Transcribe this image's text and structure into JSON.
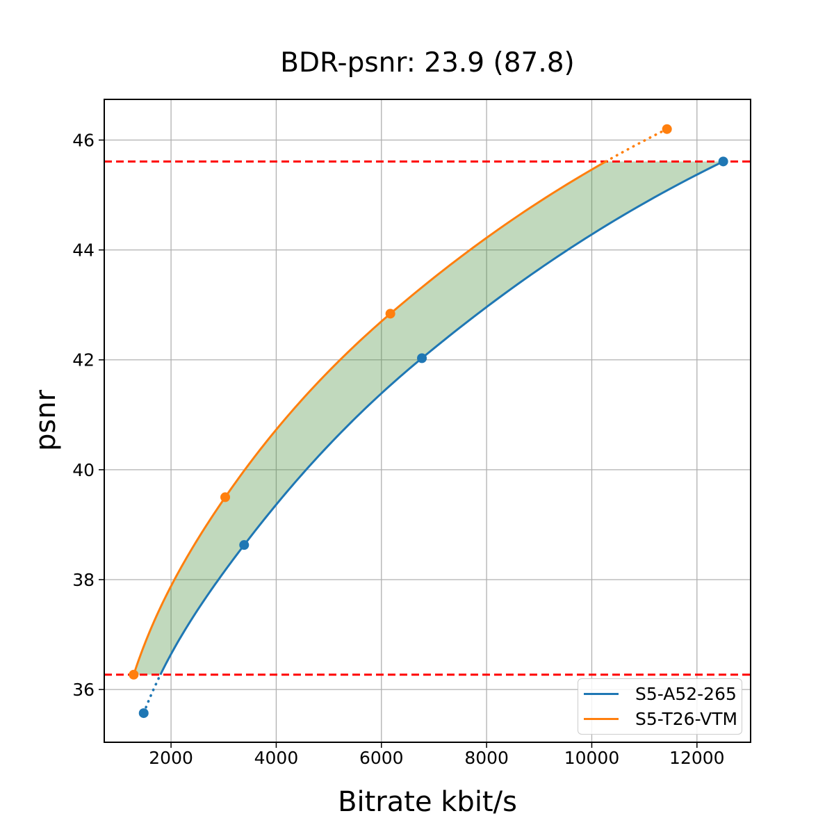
{
  "title": "BDR-psnr: 23.9 (87.8)",
  "chart_data": {
    "type": "line",
    "title": "BDR-psnr: 23.9 (87.8)",
    "xlabel": "Bitrate kbit/s",
    "ylabel": "psnr",
    "xlim": [
      730,
      13020
    ],
    "ylim": [
      35.04,
      46.74
    ],
    "xticks": [
      2000,
      4000,
      6000,
      8000,
      10000,
      12000
    ],
    "yticks": [
      36,
      38,
      40,
      42,
      44,
      46
    ],
    "grid": true,
    "interpolation": "pchip-logx",
    "legend_position": "lower right",
    "series": [
      {
        "name": "S5-A52-265",
        "color": "#1f77b4",
        "x": [
          1480,
          3390,
          6770,
          12500
        ],
        "y": [
          35.57,
          38.63,
          42.03,
          45.61
        ]
      },
      {
        "name": "S5-T26-VTM",
        "color": "#ff7f0e",
        "x": [
          1290,
          3030,
          6170,
          11430
        ],
        "y": [
          36.27,
          39.5,
          42.84,
          46.2
        ]
      }
    ],
    "hlines": {
      "values": [
        45.61,
        36.27
      ],
      "color": "#ff0000",
      "style": "dashed"
    },
    "overlap_band": {
      "y_low": 36.27,
      "y_high": 45.61,
      "fill": "rgba(76,145,65,0.35)"
    }
  },
  "legend": {
    "items": [
      {
        "label": "S5-A52-265",
        "color": "#1f77b4"
      },
      {
        "label": "S5-T26-VTM",
        "color": "#ff7f0e"
      }
    ]
  },
  "colors": {
    "grid": "#b0b0b0",
    "spine": "#000000",
    "tick_label": "#000000",
    "legend_border": "#cccccc"
  }
}
